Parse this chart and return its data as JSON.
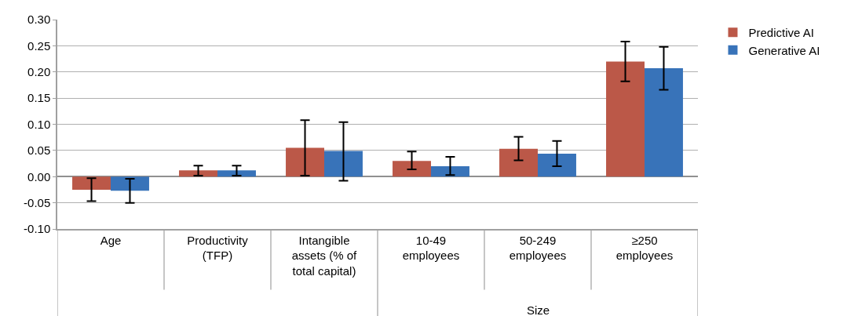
{
  "chart_data": {
    "type": "bar",
    "categories": [
      "Age",
      "Productivity (TFP)",
      "Intangible assets (% of total capital)",
      "10-49 employees",
      "50-249 employees",
      "≥250 employees"
    ],
    "series": [
      {
        "name": "Predictive AI",
        "color": "#bb5848",
        "values": [
          -0.025,
          0.012,
          0.055,
          0.03,
          0.053,
          0.22
        ],
        "errors": [
          [
            -0.047,
            -0.003
          ],
          [
            0.002,
            0.021
          ],
          [
            0.002,
            0.108
          ],
          [
            0.014,
            0.048
          ],
          [
            0.031,
            0.076
          ],
          [
            0.182,
            0.258
          ]
        ]
      },
      {
        "name": "Generative AI",
        "color": "#3873b9",
        "values": [
          -0.027,
          0.012,
          0.049,
          0.02,
          0.044,
          0.207
        ],
        "errors": [
          [
            -0.05,
            -0.004
          ],
          [
            0.002,
            0.021
          ],
          [
            -0.008,
            0.104
          ],
          [
            0.003,
            0.038
          ],
          [
            0.02,
            0.068
          ],
          [
            0.166,
            0.248
          ]
        ]
      }
    ],
    "annotations": [
      "Size"
    ],
    "ylim": [
      -0.1,
      0.3
    ],
    "yticks": [
      {
        "value": -0.1,
        "label": "-0.10"
      },
      {
        "value": -0.05,
        "label": "-0.05"
      },
      {
        "value": 0,
        "label": "0.00"
      },
      {
        "value": 0.05,
        "label": "0.05"
      },
      {
        "value": 0.1,
        "label": "0.10"
      },
      {
        "value": 0.15,
        "label": "0.15"
      },
      {
        "value": 0.2,
        "label": "0.20"
      },
      {
        "value": 0.25,
        "label": "0.25"
      },
      {
        "value": 0.3,
        "label": "0.30"
      }
    ],
    "grid": "y",
    "legend": "top right"
  }
}
